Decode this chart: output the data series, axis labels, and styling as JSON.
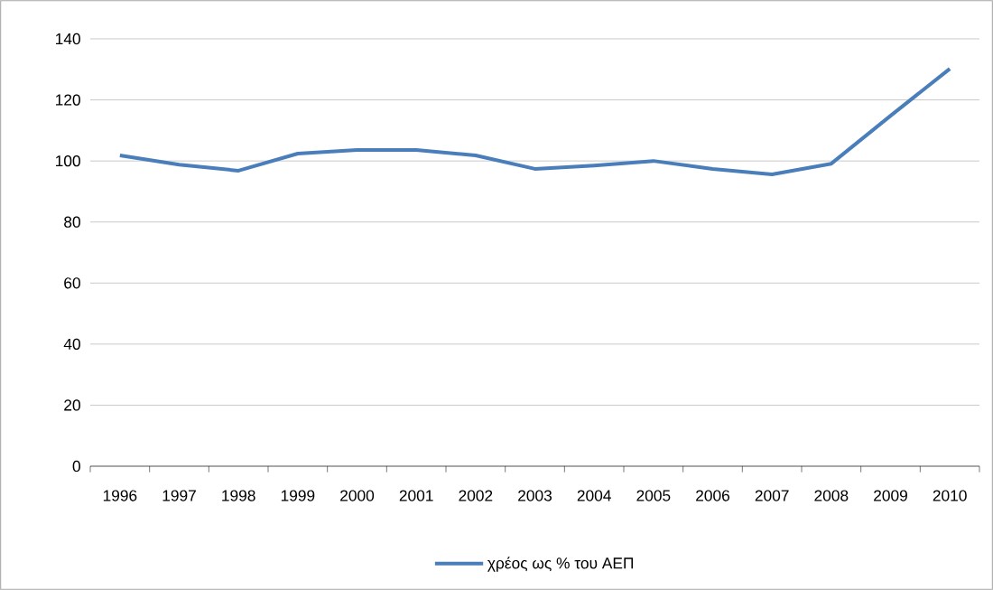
{
  "chart_data": {
    "type": "line",
    "categories": [
      "1996",
      "1997",
      "1998",
      "1999",
      "2000",
      "2001",
      "2002",
      "2003",
      "2004",
      "2005",
      "2006",
      "2007",
      "2008",
      "2009",
      "2010"
    ],
    "series": [
      {
        "name": "χρέος ως % του ΑΕΠ",
        "color": "#4a7ebb",
        "values": [
          101.8,
          98.8,
          96.8,
          102.4,
          103.6,
          103.6,
          101.8,
          97.4,
          98.5,
          100,
          97.4,
          95.6,
          99.1,
          114.8,
          130.2
        ]
      }
    ],
    "ylim": [
      0,
      140
    ],
    "yticks": [
      0,
      20,
      40,
      60,
      80,
      100,
      120,
      140
    ],
    "grid": "y",
    "legend": "bottom",
    "marker": "none",
    "line_style": "solid"
  }
}
